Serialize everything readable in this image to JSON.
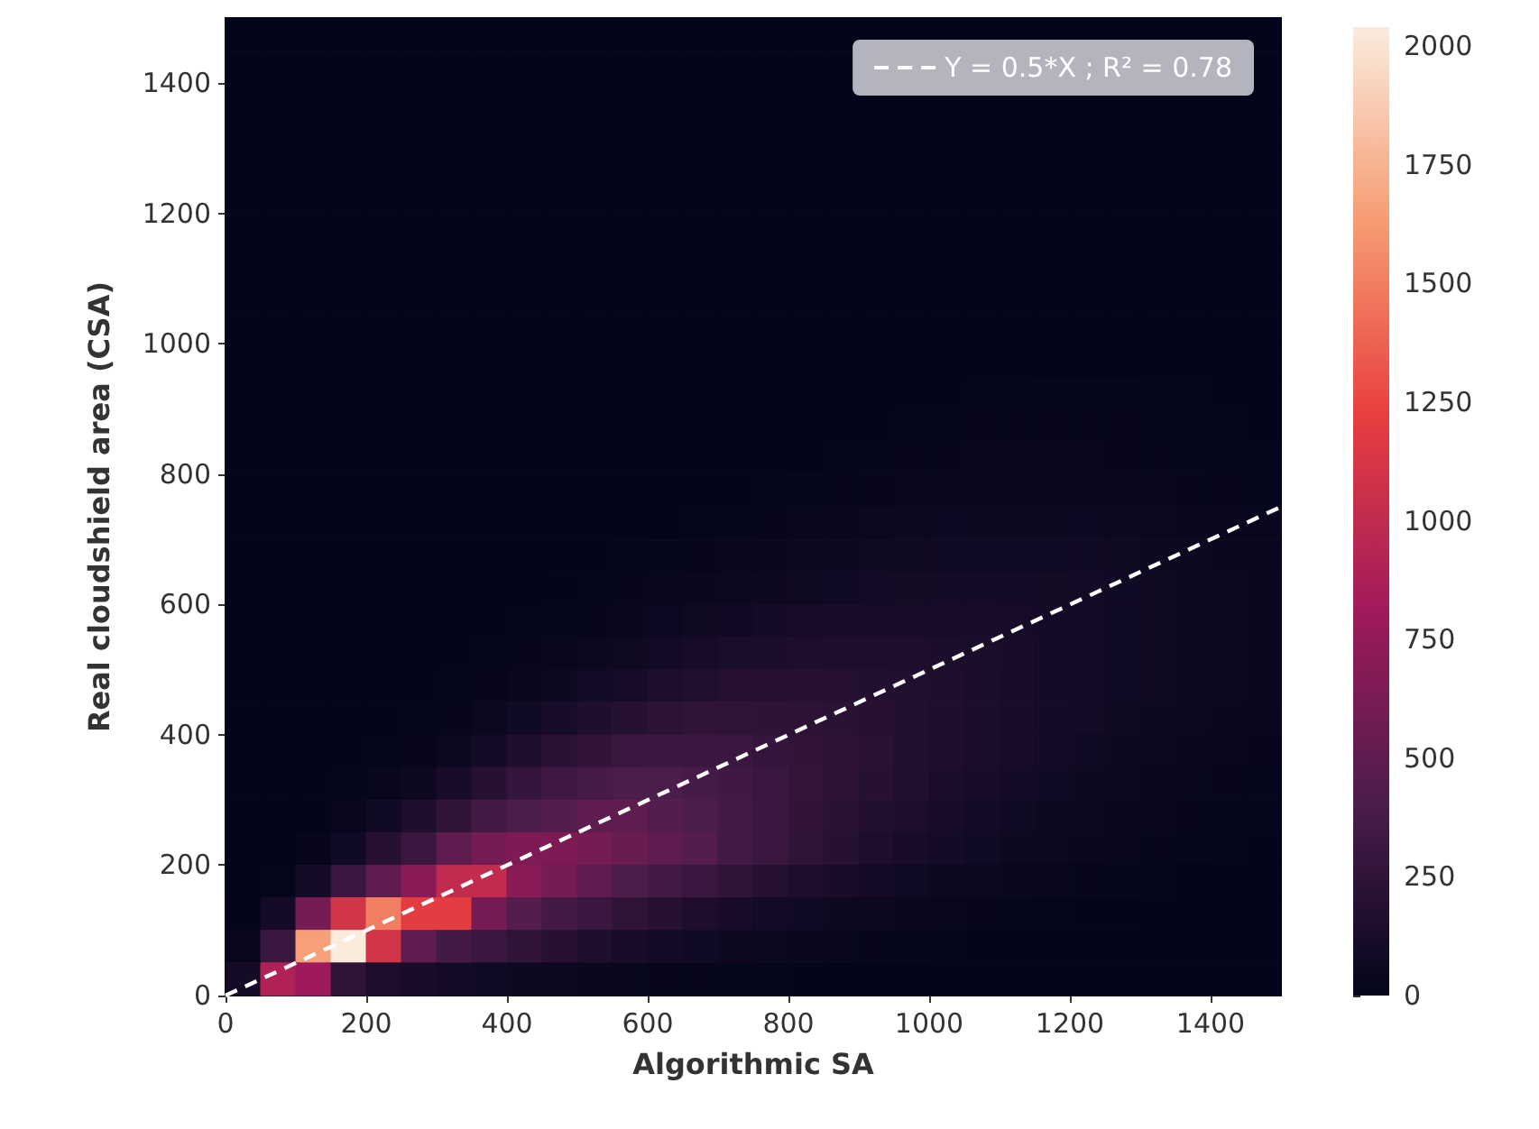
{
  "chart_data": {
    "type": "heatmap",
    "xlabel": "Algorithmic SA",
    "ylabel": "Real cloudshield area (CSA)",
    "xlim": [
      0,
      1500
    ],
    "ylim": [
      0,
      1500
    ],
    "xticks": [
      0,
      200,
      400,
      600,
      800,
      1000,
      1200,
      1400
    ],
    "yticks": [
      0,
      200,
      400,
      600,
      800,
      1000,
      1200,
      1400
    ],
    "clim": [
      0,
      2040
    ],
    "cticks": [
      0,
      250,
      500,
      750,
      1000,
      1250,
      1500,
      1750,
      2000
    ],
    "colors": [
      "#03051a",
      "#4c1d4b",
      "#a11a5b",
      "#e83f3f",
      "#f69c73",
      "#faebdd"
    ],
    "grid": false,
    "legend": "top right",
    "x": [
      25,
      75,
      125,
      175,
      225,
      275,
      325,
      375,
      425,
      475,
      525,
      575,
      625,
      675,
      725,
      775,
      825,
      875,
      925,
      975,
      1025,
      1075,
      1125,
      1175,
      1225,
      1275,
      1325,
      1375,
      1425,
      1475
    ],
    "y": [
      1475,
      1425,
      1375,
      1325,
      1275,
      1225,
      1175,
      1125,
      1075,
      1025,
      975,
      925,
      875,
      825,
      775,
      725,
      675,
      625,
      575,
      525,
      475,
      425,
      375,
      325,
      275,
      225,
      175,
      125,
      75,
      25
    ],
    "cells": [
      [
        0,
        0,
        0,
        0,
        0,
        0,
        0,
        0,
        0,
        0,
        0,
        0,
        0,
        0,
        0,
        0,
        0,
        0,
        0,
        0,
        0,
        0,
        0,
        0,
        0,
        0,
        0,
        0,
        0,
        0
      ],
      [
        0,
        0,
        0,
        0,
        0,
        0,
        0,
        0,
        0,
        0,
        0,
        0,
        0,
        0,
        0,
        0,
        0,
        0,
        null,
        null,
        null,
        null,
        null,
        null,
        null,
        null,
        null,
        null,
        null,
        0
      ],
      [
        0,
        0,
        0,
        0,
        0,
        0,
        0,
        0,
        0,
        0,
        0,
        0,
        0,
        0,
        0,
        0,
        0,
        0,
        0,
        0,
        0,
        0,
        0,
        0,
        0,
        0,
        0,
        0,
        0,
        0
      ],
      [
        0,
        0,
        0,
        0,
        0,
        0,
        0,
        0,
        0,
        0,
        0,
        0,
        0,
        0,
        0,
        0,
        0,
        0,
        0,
        0,
        0,
        0,
        0,
        0,
        0,
        0,
        0,
        0,
        0,
        0
      ],
      [
        0,
        0,
        0,
        0,
        0,
        0,
        0,
        0,
        0,
        0,
        0,
        0,
        0,
        0,
        0,
        0,
        0,
        0,
        0,
        0,
        0,
        0,
        0,
        0,
        0,
        0,
        0,
        0,
        0,
        0
      ],
      [
        0,
        0,
        0,
        0,
        0,
        0,
        0,
        0,
        0,
        0,
        0,
        0,
        0,
        0,
        0,
        0,
        0,
        0,
        0,
        0,
        0,
        0,
        0,
        0,
        0,
        0,
        0,
        0,
        0,
        0
      ],
      [
        0,
        0,
        0,
        0,
        0,
        0,
        0,
        0,
        0,
        0,
        0,
        0,
        0,
        0,
        0,
        0,
        0,
        0,
        0,
        0,
        0,
        0,
        0,
        0,
        0,
        0,
        0,
        0,
        0,
        0
      ],
      [
        0,
        0,
        0,
        0,
        0,
        0,
        0,
        0,
        0,
        0,
        0,
        0,
        0,
        0,
        0,
        0,
        0,
        0,
        0,
        0,
        0,
        0,
        0,
        0,
        0,
        0,
        0,
        0,
        0,
        0
      ],
      [
        0,
        0,
        0,
        0,
        0,
        0,
        0,
        0,
        0,
        0,
        0,
        0,
        0,
        0,
        0,
        0,
        0,
        0,
        0,
        0,
        0,
        0,
        0,
        0,
        0,
        0,
        0,
        0,
        0,
        0
      ],
      [
        0,
        0,
        0,
        0,
        0,
        0,
        0,
        0,
        0,
        0,
        0,
        0,
        0,
        0,
        0,
        0,
        0,
        0,
        0,
        0,
        0,
        0,
        0,
        0,
        0,
        0,
        0,
        0,
        0,
        0
      ],
      [
        0,
        0,
        0,
        0,
        0,
        0,
        0,
        0,
        0,
        0,
        0,
        0,
        0,
        0,
        0,
        0,
        0,
        0,
        0,
        0,
        0,
        0,
        0,
        0,
        0,
        0,
        0,
        0,
        0,
        0
      ],
      [
        0,
        0,
        0,
        0,
        0,
        0,
        0,
        0,
        0,
        0,
        0,
        0,
        0,
        0,
        0,
        0,
        0,
        0,
        0,
        0,
        5,
        10,
        10,
        15,
        15,
        15,
        10,
        10,
        5,
        5
      ],
      [
        0,
        0,
        0,
        0,
        0,
        0,
        0,
        0,
        0,
        0,
        0,
        0,
        0,
        0,
        0,
        0,
        0,
        0,
        5,
        10,
        15,
        20,
        20,
        20,
        20,
        20,
        15,
        10,
        10,
        5
      ],
      [
        0,
        0,
        0,
        0,
        0,
        0,
        0,
        0,
        0,
        0,
        0,
        0,
        0,
        0,
        0,
        0,
        5,
        10,
        15,
        20,
        25,
        30,
        30,
        30,
        30,
        25,
        20,
        15,
        10,
        10
      ],
      [
        0,
        0,
        0,
        0,
        0,
        0,
        0,
        0,
        0,
        0,
        0,
        0,
        0,
        0,
        5,
        10,
        15,
        20,
        25,
        30,
        35,
        40,
        40,
        40,
        40,
        35,
        30,
        25,
        20,
        15
      ],
      [
        0,
        0,
        0,
        0,
        0,
        0,
        0,
        0,
        0,
        0,
        0,
        0,
        5,
        10,
        15,
        20,
        30,
        40,
        45,
        50,
        55,
        60,
        60,
        60,
        55,
        50,
        45,
        40,
        35,
        30
      ],
      [
        0,
        0,
        0,
        0,
        0,
        0,
        0,
        0,
        0,
        0,
        5,
        10,
        15,
        20,
        30,
        40,
        50,
        60,
        65,
        70,
        75,
        80,
        80,
        80,
        75,
        70,
        60,
        50,
        40,
        30
      ],
      [
        0,
        0,
        0,
        0,
        0,
        0,
        0,
        0,
        0,
        5,
        10,
        20,
        30,
        40,
        50,
        60,
        70,
        80,
        90,
        95,
        100,
        100,
        100,
        95,
        90,
        80,
        70,
        60,
        50,
        40
      ],
      [
        0,
        0,
        0,
        0,
        0,
        0,
        0,
        0,
        10,
        15,
        25,
        40,
        55,
        70,
        85,
        100,
        110,
        115,
        120,
        120,
        120,
        115,
        110,
        100,
        90,
        80,
        70,
        60,
        50,
        40
      ],
      [
        0,
        0,
        0,
        0,
        0,
        0,
        0,
        10,
        20,
        30,
        50,
        70,
        90,
        110,
        130,
        140,
        150,
        150,
        150,
        150,
        140,
        130,
        120,
        100,
        90,
        80,
        70,
        60,
        50,
        40
      ],
      [
        0,
        0,
        0,
        0,
        0,
        0,
        10,
        20,
        40,
        60,
        90,
        120,
        150,
        170,
        190,
        200,
        200,
        190,
        180,
        170,
        160,
        140,
        120,
        100,
        90,
        80,
        70,
        60,
        50,
        40
      ],
      [
        0,
        0,
        0,
        0,
        0,
        10,
        20,
        50,
        80,
        120,
        160,
        200,
        230,
        250,
        250,
        240,
        230,
        220,
        200,
        180,
        160,
        140,
        120,
        100,
        90,
        70,
        60,
        50,
        40,
        30
      ],
      [
        0,
        0,
        0,
        0,
        10,
        25,
        50,
        100,
        160,
        220,
        260,
        300,
        320,
        320,
        300,
        280,
        260,
        240,
        210,
        180,
        160,
        140,
        120,
        100,
        80,
        60,
        50,
        40,
        30,
        20
      ],
      [
        0,
        0,
        0,
        10,
        30,
        60,
        120,
        200,
        280,
        330,
        380,
        400,
        400,
        380,
        340,
        300,
        270,
        240,
        200,
        170,
        140,
        120,
        100,
        80,
        60,
        50,
        40,
        30,
        20,
        15
      ],
      [
        0,
        0,
        5,
        30,
        80,
        150,
        250,
        350,
        400,
        450,
        500,
        500,
        450,
        400,
        350,
        300,
        260,
        220,
        180,
        150,
        120,
        100,
        80,
        60,
        50,
        40,
        30,
        20,
        15,
        10
      ],
      [
        0,
        0,
        20,
        80,
        200,
        300,
        500,
        600,
        650,
        650,
        600,
        550,
        500,
        450,
        350,
        300,
        250,
        200,
        150,
        120,
        100,
        80,
        60,
        50,
        40,
        30,
        20,
        15,
        10,
        5
      ],
      [
        0,
        10,
        100,
        300,
        500,
        700,
        1000,
        1000,
        700,
        600,
        500,
        400,
        350,
        300,
        250,
        200,
        150,
        120,
        100,
        80,
        60,
        50,
        40,
        30,
        20,
        15,
        10,
        8,
        5,
        3
      ],
      [
        5,
        100,
        600,
        1100,
        1500,
        1200,
        1200,
        600,
        450,
        350,
        300,
        250,
        200,
        150,
        120,
        100,
        80,
        60,
        50,
        40,
        30,
        20,
        15,
        10,
        8,
        6,
        5,
        3,
        2,
        1
      ],
      [
        30,
        300,
        1650,
        2040,
        1100,
        500,
        350,
        300,
        250,
        200,
        150,
        120,
        100,
        80,
        60,
        50,
        40,
        30,
        20,
        15,
        10,
        8,
        6,
        5,
        4,
        3,
        2,
        1,
        1,
        0
      ],
      [
        100,
        900,
        800,
        250,
        150,
        120,
        100,
        80,
        60,
        50,
        40,
        30,
        25,
        20,
        15,
        10,
        8,
        6,
        5,
        4,
        3,
        2,
        2,
        1,
        1,
        0,
        0,
        0,
        0,
        0
      ]
    ],
    "series": [
      {
        "type": "line",
        "name": "Y = 0.5*X ; R² = 0.78",
        "color": "#ffffff",
        "x": [
          0,
          1500
        ],
        "values": [
          0,
          750
        ],
        "line_style": "dashed",
        "marker": "none"
      }
    ]
  }
}
